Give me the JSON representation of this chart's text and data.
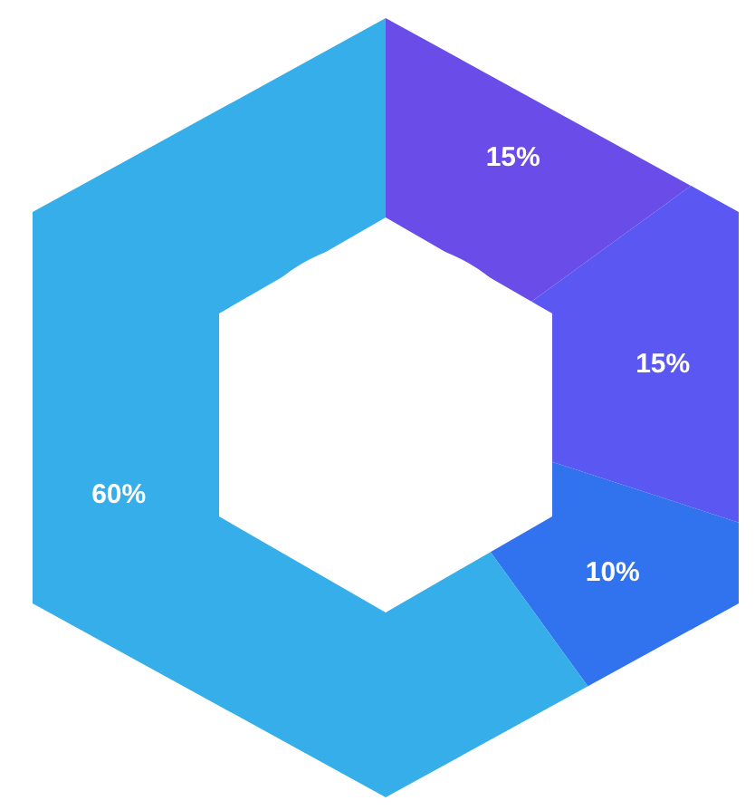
{
  "chart_data": {
    "type": "donut",
    "categories": [
      null,
      null,
      null,
      null
    ],
    "values": [
      15,
      15,
      10,
      60
    ],
    "value_labels": [
      "15%",
      "15%",
      "10%",
      "60%"
    ],
    "colors": [
      "#6a4de8",
      "#5b57f2",
      "#3172ee",
      "#35aeea"
    ]
  }
}
